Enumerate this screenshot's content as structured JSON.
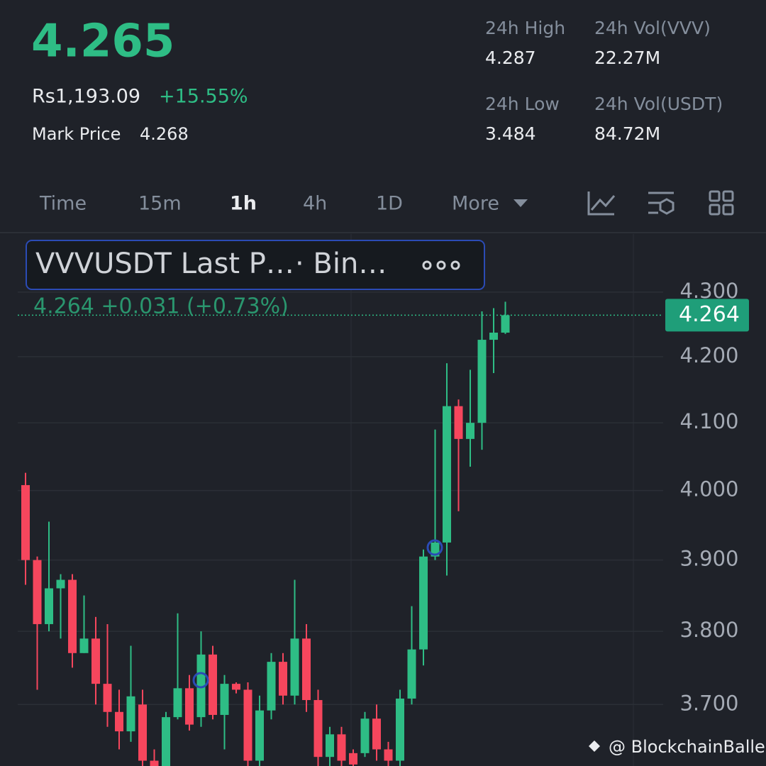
{
  "header": {
    "price": "4.265",
    "fiat": "Rs1,193.09",
    "change": "+15.55%",
    "mark_label": "Mark Price",
    "mark_value": "4.268"
  },
  "stats": [
    {
      "label": "24h High",
      "value": "4.287"
    },
    {
      "label": "24h Vol(VVV)",
      "value": "22.27M"
    },
    {
      "label": "24h Low",
      "value": "3.484"
    },
    {
      "label": "24h Vol(USDT)",
      "value": "84.72M"
    }
  ],
  "tabs": [
    "Time",
    "15m",
    "1h",
    "4h",
    "1D",
    "More"
  ],
  "watermark": "@ BlockchainBaller",
  "chart_data": {
    "type": "candlestick",
    "legend": {
      "symbol": "VVVUSDT Last P…",
      "source": "· Bin…"
    },
    "annotation": "4.264  +0.031 (+0.73%)",
    "last_price": 4.264,
    "log_scale": true,
    "grid": true,
    "up_color": "#2ebd85",
    "down_color": "#f6465d",
    "ylim": [
      3.618,
      4.392
    ],
    "yticks": [
      {
        "value": 4.3,
        "label": "4.300"
      },
      {
        "value": 4.2,
        "label": "4.200"
      },
      {
        "value": 4.1,
        "label": "4.100"
      },
      {
        "value": 4.0,
        "label": "4.000"
      },
      {
        "value": 3.9,
        "label": "3.900"
      },
      {
        "value": 3.8,
        "label": "3.800"
      },
      {
        "value": 3.7,
        "label": "3.700"
      }
    ],
    "open": [
      4.008,
      3.9,
      3.81,
      3.86,
      3.872,
      3.77,
      3.79,
      3.728,
      3.69,
      3.664,
      3.7,
      3.625,
      3.618,
      3.683,
      3.722,
      3.683,
      3.768,
      3.686,
      3.728,
      3.72,
      3.625,
      3.692,
      3.758,
      3.712,
      3.79,
      3.706,
      3.63,
      3.66,
      3.635,
      3.635,
      3.681,
      3.64,
      3.625,
      3.708,
      3.775,
      3.905,
      3.925,
      4.125,
      4.076,
      4.1,
      4.226,
      4.237
    ],
    "high": [
      4.026,
      3.905,
      3.955,
      3.88,
      3.88,
      3.85,
      3.82,
      3.81,
      3.72,
      3.78,
      3.72,
      3.64,
      3.69,
      3.825,
      3.74,
      3.8,
      3.78,
      3.74,
      3.73,
      3.73,
      3.712,
      3.77,
      3.77,
      3.872,
      3.81,
      3.72,
      3.67,
      3.67,
      3.64,
      3.69,
      3.7,
      3.65,
      3.72,
      3.835,
      3.915,
      4.09,
      4.19,
      4.135,
      4.18,
      4.27,
      4.275,
      4.285
    ],
    "low": [
      3.865,
      3.72,
      3.8,
      3.79,
      3.75,
      3.77,
      3.7,
      3.67,
      3.64,
      3.65,
      3.615,
      3.6,
      3.6,
      3.68,
      3.665,
      3.67,
      3.68,
      3.64,
      3.715,
      3.618,
      3.618,
      3.68,
      3.7,
      3.7,
      3.69,
      3.618,
      3.618,
      3.618,
      3.618,
      3.63,
      3.625,
      3.618,
      3.618,
      3.7,
      3.753,
      3.9,
      3.878,
      3.97,
      4.035,
      4.06,
      4.175,
      4.235
    ],
    "close": [
      3.9,
      3.81,
      3.86,
      3.872,
      3.77,
      3.79,
      3.728,
      3.69,
      3.664,
      3.711,
      3.625,
      3.615,
      3.683,
      3.722,
      3.673,
      3.768,
      3.686,
      3.728,
      3.72,
      3.625,
      3.692,
      3.758,
      3.712,
      3.79,
      3.706,
      3.63,
      3.66,
      3.625,
      3.62,
      3.681,
      3.64,
      3.625,
      3.708,
      3.775,
      3.905,
      3.925,
      4.125,
      4.076,
      4.1,
      4.226,
      4.237,
      4.264
    ]
  }
}
